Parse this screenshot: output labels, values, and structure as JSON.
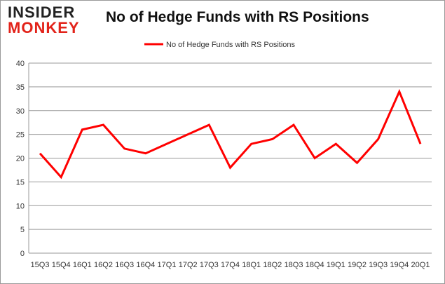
{
  "logo": {
    "line1": "INSIDER",
    "line2": "MONKEY"
  },
  "chart_data": {
    "type": "line",
    "title": "No of Hedge Funds with RS Positions",
    "categories": [
      "15Q3",
      "15Q4",
      "16Q1",
      "16Q2",
      "16Q3",
      "16Q4",
      "17Q1",
      "17Q2",
      "17Q3",
      "17Q4",
      "18Q1",
      "18Q2",
      "18Q3",
      "18Q4",
      "19Q1",
      "19Q2",
      "19Q3",
      "19Q4",
      "20Q1"
    ],
    "series": [
      {
        "name": "No of Hedge Funds with RS Positions",
        "values": [
          21,
          16,
          26,
          27,
          22,
          21,
          23,
          25,
          27,
          18,
          23,
          24,
          27,
          20,
          23,
          19,
          24,
          34,
          23
        ],
        "color": "#ff0000"
      }
    ],
    "ylim": [
      0,
      40
    ],
    "yticks": [
      0,
      5,
      10,
      15,
      20,
      25,
      30,
      35,
      40
    ],
    "grid": true,
    "legend": "top-center"
  }
}
